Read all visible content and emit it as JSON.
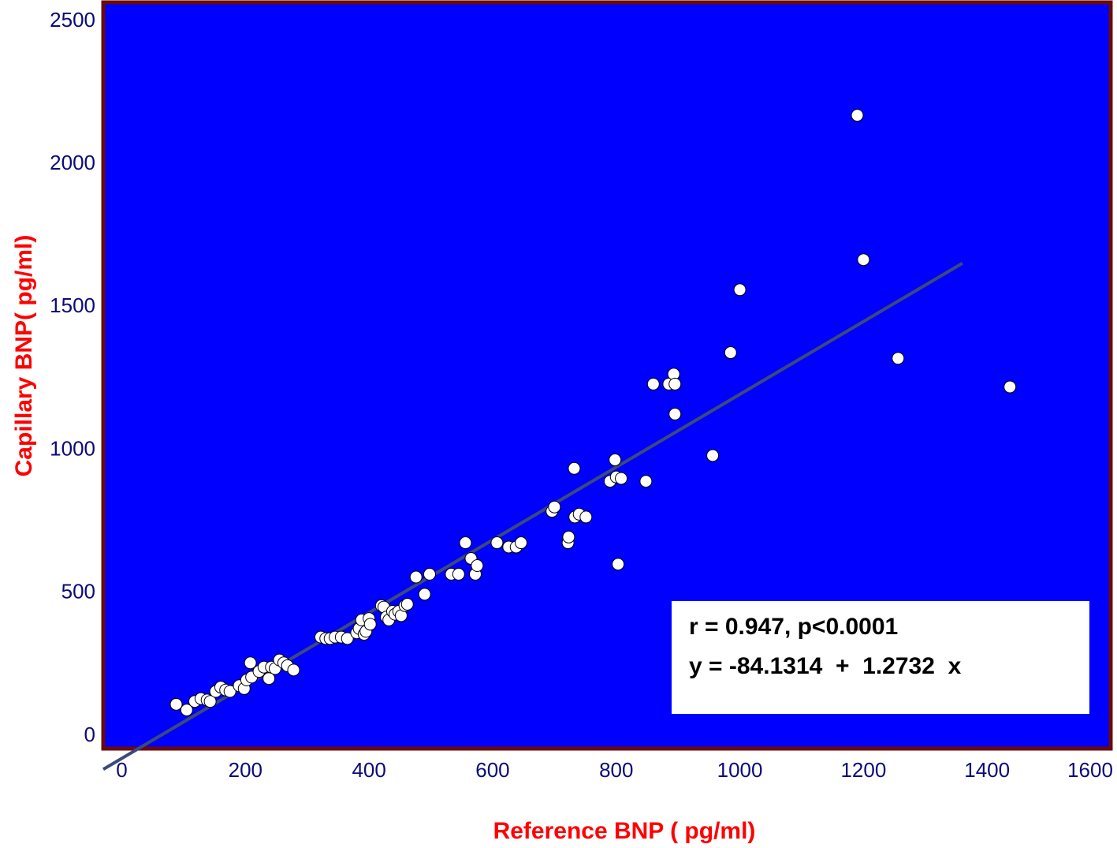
{
  "chart_data": {
    "type": "scatter",
    "title": "",
    "xlabel": "Reference BNP ( pg/ml)",
    "ylabel": "Capillary BNP( pg/ml)",
    "xlim": [
      -30,
      1600
    ],
    "ylim": [
      -50,
      2560
    ],
    "x_ticks": [
      "0",
      "200",
      "400",
      "600",
      "800",
      "1000",
      "1200",
      "1400",
      "1600"
    ],
    "y_ticks": [
      "0",
      "500",
      "1000",
      "1500",
      "2000",
      "2500"
    ],
    "grid": false,
    "colors": {
      "plot_background": "#0000ff",
      "frame": "#6b0a0a",
      "points": "#ffffff",
      "regression_line": "#3c4a7a",
      "axis_title": "#ff0000",
      "tick_text": "#0a0a78"
    },
    "regression": {
      "intercept": -84.1314,
      "slope": 1.2732,
      "x_range": [
        -30,
        1360
      ]
    },
    "annotations": {
      "r_text": "r = 0.947, p<0.0001",
      "equation_text": "y = -84.1314  +  1.2732  x"
    },
    "points": [
      [
        88,
        105
      ],
      [
        105,
        85
      ],
      [
        118,
        115
      ],
      [
        128,
        125
      ],
      [
        138,
        120
      ],
      [
        143,
        115
      ],
      [
        152,
        150
      ],
      [
        160,
        165
      ],
      [
        168,
        155
      ],
      [
        175,
        150
      ],
      [
        190,
        170
      ],
      [
        198,
        160
      ],
      [
        202,
        190
      ],
      [
        208,
        250
      ],
      [
        210,
        200
      ],
      [
        222,
        220
      ],
      [
        230,
        235
      ],
      [
        238,
        195
      ],
      [
        242,
        235
      ],
      [
        248,
        230
      ],
      [
        255,
        260
      ],
      [
        262,
        250
      ],
      [
        268,
        240
      ],
      [
        278,
        225
      ],
      [
        322,
        340
      ],
      [
        330,
        335
      ],
      [
        337,
        335
      ],
      [
        345,
        340
      ],
      [
        355,
        340
      ],
      [
        365,
        335
      ],
      [
        380,
        355
      ],
      [
        384,
        370
      ],
      [
        388,
        400
      ],
      [
        392,
        350
      ],
      [
        395,
        360
      ],
      [
        400,
        405
      ],
      [
        402,
        385
      ],
      [
        420,
        450
      ],
      [
        424,
        445
      ],
      [
        428,
        410
      ],
      [
        432,
        400
      ],
      [
        438,
        430
      ],
      [
        442,
        420
      ],
      [
        448,
        430
      ],
      [
        452,
        415
      ],
      [
        458,
        450
      ],
      [
        462,
        455
      ],
      [
        476,
        550
      ],
      [
        490,
        490
      ],
      [
        498,
        560
      ],
      [
        533,
        560
      ],
      [
        545,
        560
      ],
      [
        556,
        670
      ],
      [
        565,
        615
      ],
      [
        572,
        560
      ],
      [
        575,
        590
      ],
      [
        607,
        670
      ],
      [
        626,
        655
      ],
      [
        638,
        655
      ],
      [
        646,
        670
      ],
      [
        696,
        780
      ],
      [
        700,
        795
      ],
      [
        722,
        670
      ],
      [
        723,
        690
      ],
      [
        732,
        930
      ],
      [
        733,
        760
      ],
      [
        740,
        770
      ],
      [
        751,
        760
      ],
      [
        790,
        885
      ],
      [
        798,
        960
      ],
      [
        800,
        900
      ],
      [
        803,
        595
      ],
      [
        808,
        895
      ],
      [
        848,
        885
      ],
      [
        860,
        1225
      ],
      [
        885,
        1225
      ],
      [
        893,
        1260
      ],
      [
        895,
        1225
      ],
      [
        895,
        1120
      ],
      [
        956,
        975
      ],
      [
        985,
        1335
      ],
      [
        1000,
        1555
      ],
      [
        1190,
        2165
      ],
      [
        1200,
        1660
      ],
      [
        1256,
        1315
      ],
      [
        1437,
        1215
      ]
    ]
  }
}
